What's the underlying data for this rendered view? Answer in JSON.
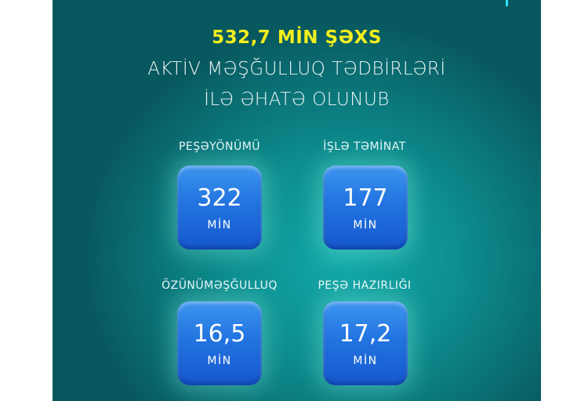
{
  "headline": "532,7 MİN ŞƏXS",
  "subtitle_lines": [
    "AKTİV MƏŞĞULLUQ TƏDBİRLƏRİ",
    "İLƏ ƏHATƏ OLUNUB"
  ],
  "colors": {
    "headline": "#f3ee1d",
    "background": "#0d8d8f",
    "tile": "#2274e0"
  },
  "stats": [
    {
      "label": "PEŞƏYÖNÜMÜ",
      "value": "322",
      "unit": "MİN"
    },
    {
      "label": "İŞLƏ TƏMİNAT",
      "value": "177",
      "unit": "MİN"
    },
    {
      "label": "ÖZÜNÜMƏŞĞULLUQ",
      "value": "16,5",
      "unit": "MİN"
    },
    {
      "label": "PEŞƏ HAZIRLIĞI",
      "value": "17,2",
      "unit": "MİN"
    }
  ]
}
